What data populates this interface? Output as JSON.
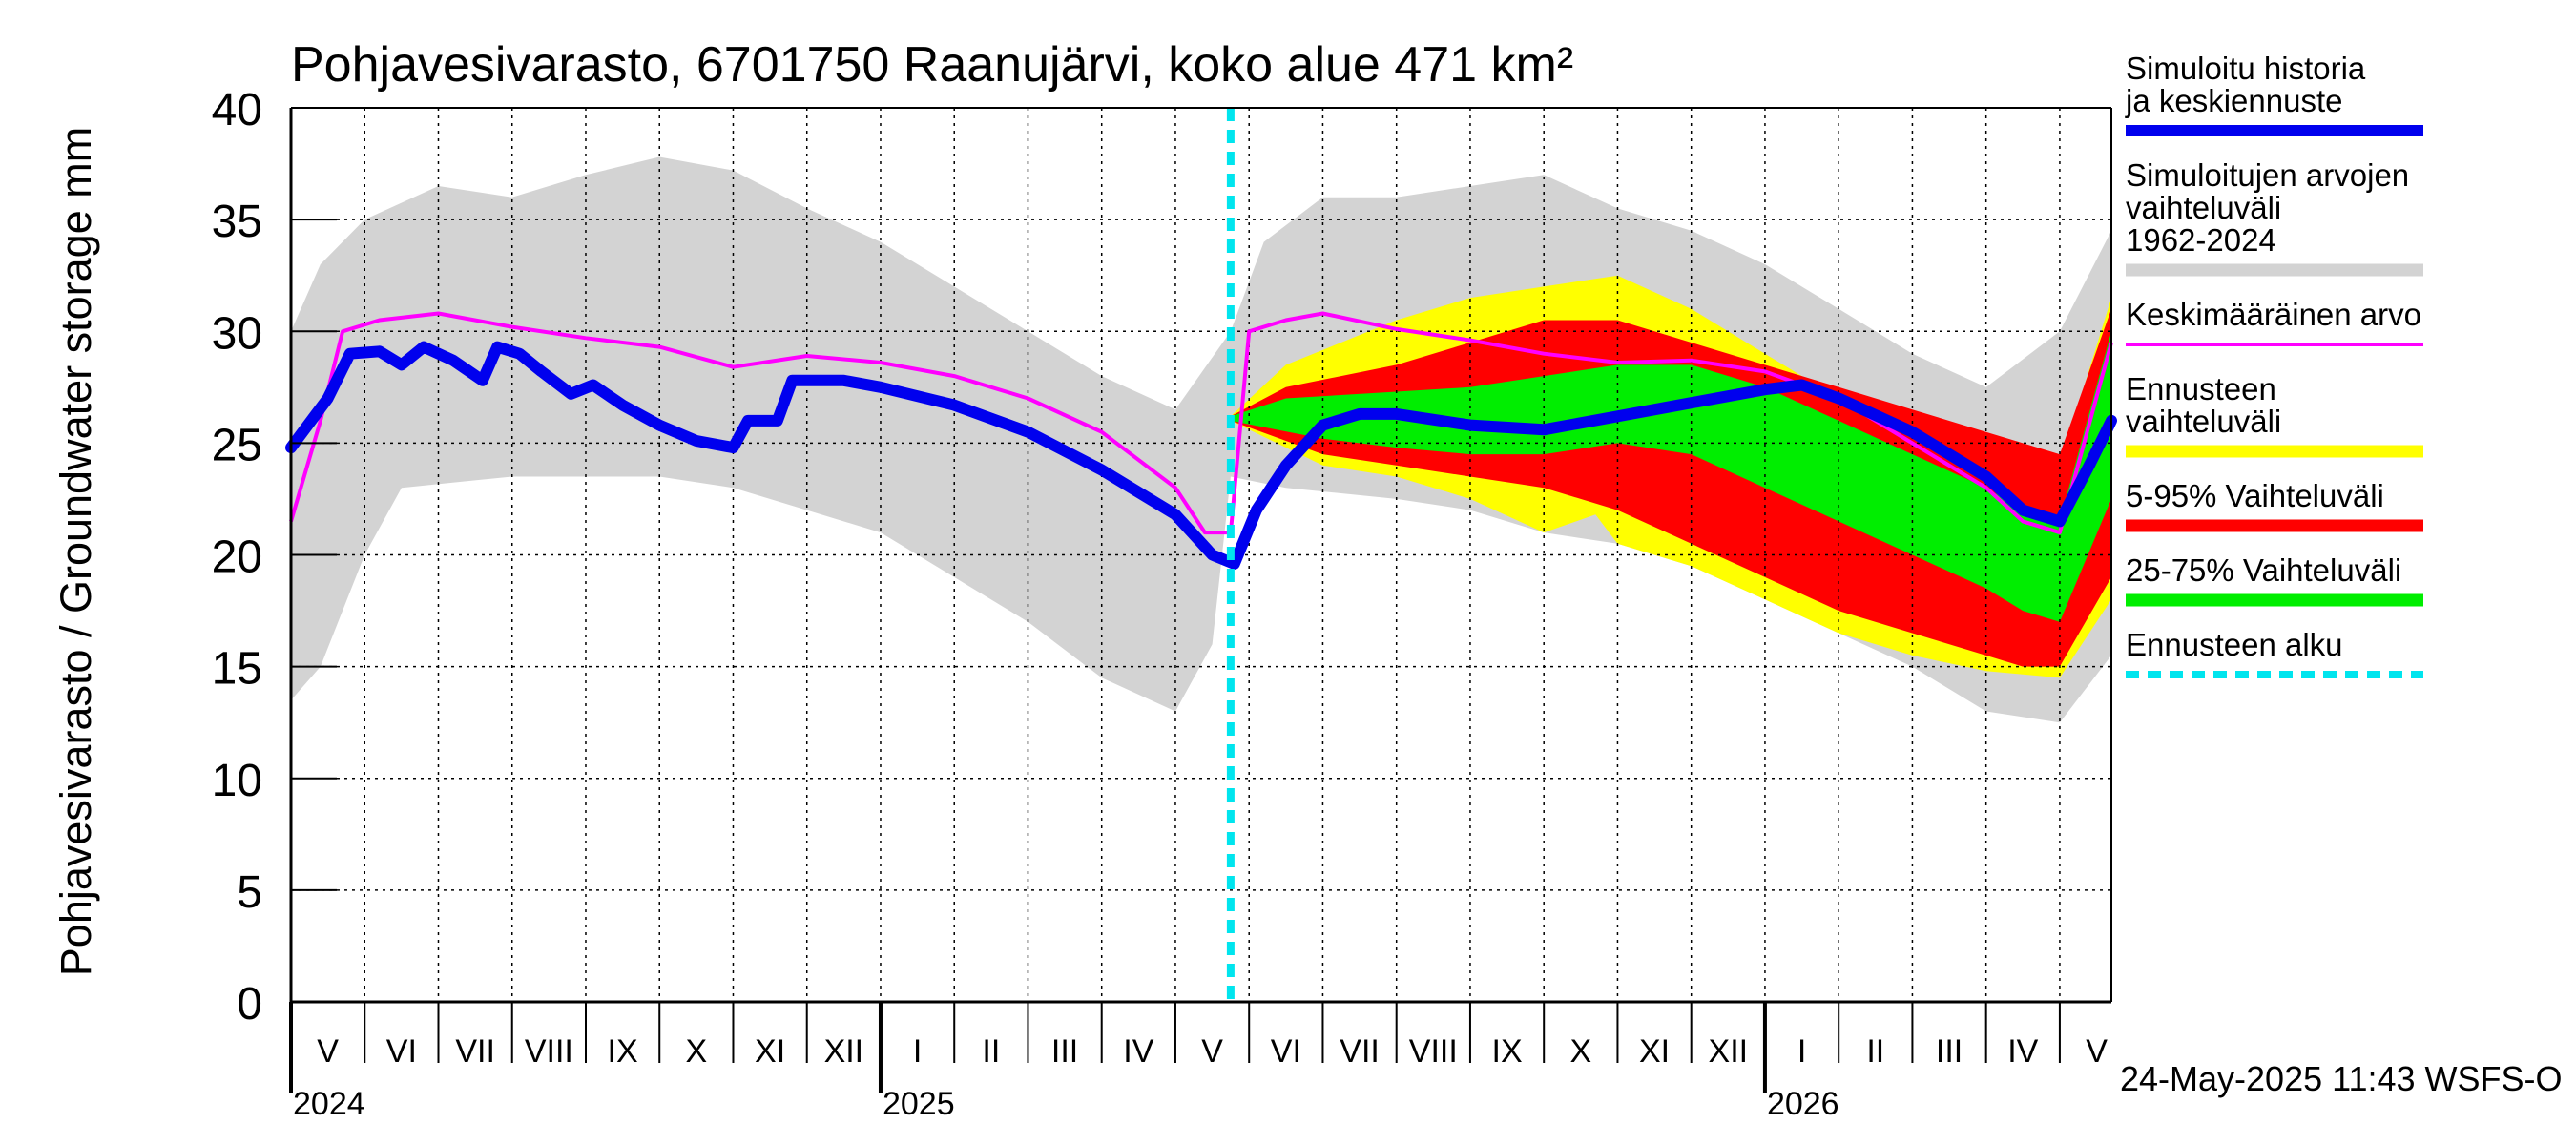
{
  "chart_data": {
    "type": "area",
    "title": "Pohjavesivarasto, 6701750 Raanujärvi, koko alue 471 km²",
    "ylabel": "Pohjavesivarasto / Groundwater storage   mm",
    "xlabel": "",
    "ylim": [
      0,
      40
    ],
    "yticks": [
      "0",
      "5",
      "10",
      "15",
      "20",
      "25",
      "30",
      "35",
      "40"
    ],
    "x_unit": "months since 2024-05-01",
    "xlim": [
      0,
      24.7
    ],
    "forecast_start": 12.75,
    "months": [
      {
        "label": "V",
        "x": 0.5
      },
      {
        "label": "VI",
        "x": 1.5
      },
      {
        "label": "VII",
        "x": 2.5
      },
      {
        "label": "VIII",
        "x": 3.5
      },
      {
        "label": "IX",
        "x": 4.5
      },
      {
        "label": "X",
        "x": 5.5
      },
      {
        "label": "XI",
        "x": 6.5
      },
      {
        "label": "XII",
        "x": 7.5
      },
      {
        "label": "I",
        "x": 8.5
      },
      {
        "label": "II",
        "x": 9.5
      },
      {
        "label": "III",
        "x": 10.5
      },
      {
        "label": "IV",
        "x": 11.5
      },
      {
        "label": "V",
        "x": 12.5
      },
      {
        "label": "VI",
        "x": 13.5
      },
      {
        "label": "VII",
        "x": 14.5
      },
      {
        "label": "VIII",
        "x": 15.5
      },
      {
        "label": "IX",
        "x": 16.5
      },
      {
        "label": "X",
        "x": 17.5
      },
      {
        "label": "XI",
        "x": 18.5
      },
      {
        "label": "XII",
        "x": 19.5
      },
      {
        "label": "I",
        "x": 20.5
      },
      {
        "label": "II",
        "x": 21.5
      },
      {
        "label": "III",
        "x": 22.5
      },
      {
        "label": "IV",
        "x": 23.5
      },
      {
        "label": "V",
        "x": 24.5
      }
    ],
    "years": [
      {
        "label": "2024",
        "x": 0
      },
      {
        "label": "2025",
        "x": 8
      },
      {
        "label": "2026",
        "x": 20
      }
    ],
    "series": [
      {
        "name": "Simuloitujen arvojen vaihteluväli 1962-2024",
        "color": "#d3d3d3",
        "upper": [
          [
            0,
            30
          ],
          [
            0.4,
            33
          ],
          [
            1,
            35
          ],
          [
            2,
            36.5
          ],
          [
            3,
            36
          ],
          [
            4,
            37
          ],
          [
            5,
            37.8
          ],
          [
            6,
            37.2
          ],
          [
            7,
            35.5
          ],
          [
            8,
            34
          ],
          [
            9,
            32
          ],
          [
            10,
            30
          ],
          [
            11,
            28
          ],
          [
            12,
            26.5
          ],
          [
            12.75,
            30
          ],
          [
            13.2,
            34
          ],
          [
            14,
            36
          ],
          [
            15,
            36
          ],
          [
            16,
            36.5
          ],
          [
            17,
            37
          ],
          [
            18,
            35.5
          ],
          [
            19,
            34.5
          ],
          [
            20,
            33
          ],
          [
            21,
            31
          ],
          [
            22,
            29
          ],
          [
            23,
            27.5
          ],
          [
            24,
            30
          ],
          [
            24.7,
            34.5
          ]
        ],
        "lower": [
          [
            0,
            13.5
          ],
          [
            0.4,
            15
          ],
          [
            1,
            20
          ],
          [
            1.5,
            23
          ],
          [
            3,
            23.5
          ],
          [
            5,
            23.5
          ],
          [
            6,
            23
          ],
          [
            7,
            22
          ],
          [
            8,
            21
          ],
          [
            9,
            19
          ],
          [
            10,
            17
          ],
          [
            11,
            14.5
          ],
          [
            12,
            13
          ],
          [
            12.5,
            16
          ],
          [
            12.75,
            23.5
          ],
          [
            13.5,
            23
          ],
          [
            15,
            22.5
          ],
          [
            16,
            22
          ],
          [
            17,
            21
          ],
          [
            18,
            20.5
          ],
          [
            19,
            19.5
          ],
          [
            20,
            18
          ],
          [
            21,
            16.5
          ],
          [
            22,
            15
          ],
          [
            23,
            13
          ],
          [
            24,
            12.5
          ],
          [
            24.7,
            15.5
          ]
        ]
      },
      {
        "name": "Ennusteen vaihteluväli",
        "color": "#ffff00",
        "upper": [
          [
            12.75,
            26.2
          ],
          [
            13.5,
            28.5
          ],
          [
            15,
            30.5
          ],
          [
            16,
            31.5
          ],
          [
            17,
            32
          ],
          [
            18,
            32.5
          ],
          [
            19,
            31
          ],
          [
            20,
            29
          ],
          [
            21,
            27
          ],
          [
            22,
            25.5
          ],
          [
            23,
            24.5
          ],
          [
            24,
            24
          ],
          [
            24.7,
            31.5
          ]
        ],
        "lower": [
          [
            12.75,
            26
          ],
          [
            14,
            24
          ],
          [
            15,
            23.5
          ],
          [
            16,
            22.5
          ],
          [
            17,
            21
          ],
          [
            17.7,
            21.8
          ],
          [
            18,
            20.5
          ],
          [
            19,
            19.5
          ],
          [
            20,
            18
          ],
          [
            21,
            16.5
          ],
          [
            22,
            15.5
          ],
          [
            23,
            14.8
          ],
          [
            24,
            14.5
          ],
          [
            24.7,
            18
          ]
        ]
      },
      {
        "name": "5-95% Vaihteluväli",
        "color": "#ff0000",
        "upper": [
          [
            12.75,
            26.2
          ],
          [
            13.5,
            27.5
          ],
          [
            15,
            28.5
          ],
          [
            16,
            29.5
          ],
          [
            17,
            30.5
          ],
          [
            18,
            30.5
          ],
          [
            19,
            29.5
          ],
          [
            20,
            28.5
          ],
          [
            21,
            27.5
          ],
          [
            22,
            26.5
          ],
          [
            23,
            25.5
          ],
          [
            23.5,
            25
          ],
          [
            24,
            24.5
          ],
          [
            24.7,
            31
          ]
        ],
        "lower": [
          [
            12.75,
            26
          ],
          [
            14,
            24.5
          ],
          [
            15,
            24
          ],
          [
            16,
            23.5
          ],
          [
            17,
            23
          ],
          [
            18,
            22
          ],
          [
            19,
            20.5
          ],
          [
            20,
            19
          ],
          [
            21,
            17.5
          ],
          [
            22,
            16.5
          ],
          [
            23,
            15.5
          ],
          [
            23.5,
            15
          ],
          [
            24,
            15
          ],
          [
            24.7,
            19
          ]
        ]
      },
      {
        "name": "25-75% Vaihteluväli",
        "color": "#00ee00",
        "upper": [
          [
            12.75,
            26.2
          ],
          [
            13.5,
            27
          ],
          [
            15,
            27.3
          ],
          [
            16,
            27.5
          ],
          [
            17,
            28
          ],
          [
            18,
            28.5
          ],
          [
            19,
            28.5
          ],
          [
            20,
            27.5
          ],
          [
            21,
            26
          ],
          [
            22,
            24.5
          ],
          [
            23,
            23
          ],
          [
            23.5,
            22
          ],
          [
            24,
            21.5
          ],
          [
            24.7,
            30
          ]
        ],
        "lower": [
          [
            12.75,
            26
          ],
          [
            14,
            25.2
          ],
          [
            15,
            24.8
          ],
          [
            16,
            24.5
          ],
          [
            17,
            24.5
          ],
          [
            18,
            25
          ],
          [
            19,
            24.5
          ],
          [
            20,
            23
          ],
          [
            21,
            21.5
          ],
          [
            22,
            20
          ],
          [
            23,
            18.5
          ],
          [
            23.5,
            17.5
          ],
          [
            24,
            17
          ],
          [
            24.7,
            22.5
          ]
        ]
      },
      {
        "name": "Keskimääräinen arvo",
        "color": "#ff00ff",
        "values": [
          [
            0,
            21.5
          ],
          [
            0.4,
            26
          ],
          [
            0.7,
            30
          ],
          [
            1.2,
            30.5
          ],
          [
            2,
            30.8
          ],
          [
            3,
            30.2
          ],
          [
            4,
            29.7
          ],
          [
            5,
            29.3
          ],
          [
            6,
            28.4
          ],
          [
            7,
            28.9
          ],
          [
            8,
            28.6
          ],
          [
            9,
            28
          ],
          [
            10,
            27
          ],
          [
            11,
            25.5
          ],
          [
            12,
            23
          ],
          [
            12.4,
            21
          ],
          [
            12.75,
            21
          ],
          [
            13,
            30
          ],
          [
            13.5,
            30.5
          ],
          [
            14,
            30.8
          ],
          [
            15,
            30.1
          ],
          [
            16,
            29.6
          ],
          [
            17,
            29
          ],
          [
            18,
            28.6
          ],
          [
            19,
            28.7
          ],
          [
            20,
            28.2
          ],
          [
            21,
            27
          ],
          [
            22,
            25
          ],
          [
            23,
            23
          ],
          [
            23.5,
            21.5
          ],
          [
            24,
            21
          ],
          [
            24.7,
            29.5
          ]
        ]
      },
      {
        "name": "Simuloitu historia ja keskiennuste",
        "color": "#0000ee",
        "values": [
          [
            0,
            24.8
          ],
          [
            0.5,
            27
          ],
          [
            0.8,
            29
          ],
          [
            1.2,
            29.1
          ],
          [
            1.5,
            28.5
          ],
          [
            1.8,
            29.3
          ],
          [
            2.2,
            28.7
          ],
          [
            2.6,
            27.8
          ],
          [
            2.8,
            29.3
          ],
          [
            3.1,
            29
          ],
          [
            3.4,
            28.2
          ],
          [
            3.8,
            27.2
          ],
          [
            4.1,
            27.6
          ],
          [
            4.5,
            26.7
          ],
          [
            5,
            25.8
          ],
          [
            5.5,
            25.1
          ],
          [
            6,
            24.8
          ],
          [
            6.2,
            26
          ],
          [
            6.6,
            26
          ],
          [
            6.8,
            27.8
          ],
          [
            7.5,
            27.8
          ],
          [
            8,
            27.5
          ],
          [
            9,
            26.7
          ],
          [
            10,
            25.5
          ],
          [
            11,
            23.8
          ],
          [
            12,
            21.8
          ],
          [
            12.5,
            20
          ],
          [
            12.8,
            19.6
          ],
          [
            13.1,
            22
          ],
          [
            13.5,
            24
          ],
          [
            14,
            25.8
          ],
          [
            14.5,
            26.3
          ],
          [
            15,
            26.3
          ],
          [
            16,
            25.8
          ],
          [
            17,
            25.6
          ],
          [
            18,
            26.2
          ],
          [
            19,
            26.8
          ],
          [
            20,
            27.4
          ],
          [
            20.5,
            27.6
          ],
          [
            21,
            27
          ],
          [
            22,
            25.5
          ],
          [
            23,
            23.5
          ],
          [
            23.5,
            22
          ],
          [
            24,
            21.5
          ],
          [
            24.4,
            24
          ],
          [
            24.7,
            26
          ]
        ]
      },
      {
        "name": "Ennusteen alku",
        "color": "#00e5ee",
        "x": 12.75
      }
    ],
    "legend": [
      {
        "label": "Simuloitu historia ja keskiennuste",
        "color": "#0000ee",
        "style": "line"
      },
      {
        "label": "Simuloitujen arvojen vaihteluväli 1962-2024",
        "color": "#d3d3d3",
        "style": "band"
      },
      {
        "label": "Keskimääräinen arvo",
        "color": "#ff00ff",
        "style": "thin"
      },
      {
        "label": "Ennusteen vaihteluväli",
        "color": "#ffff00",
        "style": "band"
      },
      {
        "label": "5-95% Vaihteluväli",
        "color": "#ff0000",
        "style": "band"
      },
      {
        "label": "25-75% Vaihteluväli",
        "color": "#00ee00",
        "style": "band"
      },
      {
        "label": "Ennusteen alku",
        "color": "#00e5ee",
        "style": "dashed"
      }
    ],
    "legend_position": "right",
    "footer": "24-May-2025 11:43 WSFS-O"
  }
}
